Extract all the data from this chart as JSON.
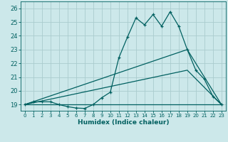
{
  "xlabel": "Humidex (Indice chaleur)",
  "background_color": "#cce8ea",
  "grid_color": "#aaccce",
  "line_color": "#006060",
  "xlim": [
    -0.5,
    23.5
  ],
  "ylim": [
    18.55,
    26.5
  ],
  "yticks": [
    19,
    20,
    21,
    22,
    23,
    24,
    25,
    26
  ],
  "xticks": [
    0,
    1,
    2,
    3,
    4,
    5,
    6,
    7,
    8,
    9,
    10,
    11,
    12,
    13,
    14,
    15,
    16,
    17,
    18,
    19,
    20,
    21,
    22,
    23
  ],
  "series1_x": [
    0,
    1,
    2,
    3,
    4,
    5,
    6,
    7,
    8,
    9,
    10,
    11,
    12,
    13,
    14,
    15,
    16,
    17,
    18,
    19,
    20,
    21,
    22,
    23
  ],
  "series1_y": [
    19.0,
    19.2,
    19.2,
    19.2,
    19.0,
    18.85,
    18.75,
    18.72,
    19.0,
    19.5,
    19.9,
    22.4,
    23.9,
    25.3,
    24.8,
    25.55,
    24.7,
    25.75,
    24.7,
    23.0,
    21.5,
    20.85,
    19.6,
    19.0
  ],
  "series2_x": [
    0,
    23
  ],
  "series2_y": [
    19.0,
    19.0
  ],
  "series3_x": [
    0,
    19,
    23
  ],
  "series3_y": [
    19.0,
    23.0,
    19.0
  ],
  "series4_x": [
    0,
    19,
    23
  ],
  "series4_y": [
    19.0,
    21.5,
    19.0
  ]
}
